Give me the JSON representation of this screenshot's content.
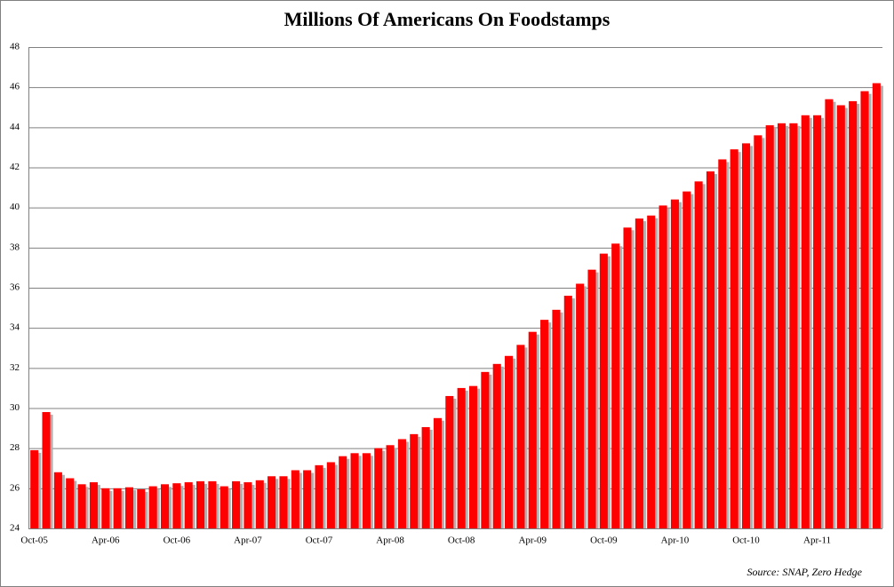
{
  "chart_data": {
    "type": "bar",
    "title": "Millions Of Americans On Foodstamps",
    "source": "Source: SNAP, Zero Hedge",
    "categories": [
      "Oct-05",
      null,
      null,
      null,
      null,
      null,
      "Apr-06",
      null,
      null,
      null,
      null,
      null,
      "Oct-06",
      null,
      null,
      null,
      null,
      null,
      "Apr-07",
      null,
      null,
      null,
      null,
      null,
      "Oct-07",
      null,
      null,
      null,
      null,
      null,
      "Apr-08",
      null,
      null,
      null,
      null,
      null,
      "Oct-08",
      null,
      null,
      null,
      null,
      null,
      "Apr-09",
      null,
      null,
      null,
      null,
      null,
      "Oct-09",
      null,
      null,
      null,
      null,
      null,
      "Apr-10",
      null,
      null,
      null,
      null,
      null,
      "Oct-10",
      null,
      null,
      null,
      null,
      null,
      "Apr-11",
      null,
      null,
      null,
      null,
      null
    ],
    "values": [
      27.9,
      29.8,
      26.8,
      26.5,
      26.2,
      26.3,
      26.0,
      26.0,
      26.05,
      25.95,
      26.1,
      26.2,
      26.25,
      26.3,
      26.35,
      26.35,
      26.1,
      26.35,
      26.3,
      26.4,
      26.6,
      26.6,
      26.9,
      26.9,
      27.15,
      27.3,
      27.6,
      27.75,
      27.75,
      28.0,
      28.15,
      28.45,
      28.7,
      29.05,
      29.5,
      30.6,
      31.0,
      31.1,
      31.8,
      32.2,
      32.6,
      33.15,
      33.8,
      34.4,
      34.9,
      35.6,
      36.2,
      36.9,
      37.7,
      38.2,
      39.0,
      39.45,
      39.6,
      40.1,
      40.4,
      40.8,
      41.3,
      41.8,
      42.4,
      42.9,
      43.2,
      43.6,
      44.1,
      44.2,
      44.2,
      44.6,
      44.6,
      45.4,
      45.1,
      45.3,
      45.8,
      46.2
    ],
    "color": "#ff0000",
    "ylim": [
      24,
      48
    ],
    "yticks": [
      24,
      26,
      28,
      30,
      32,
      34,
      36,
      38,
      40,
      42,
      44,
      46,
      48
    ],
    "grid": true
  }
}
